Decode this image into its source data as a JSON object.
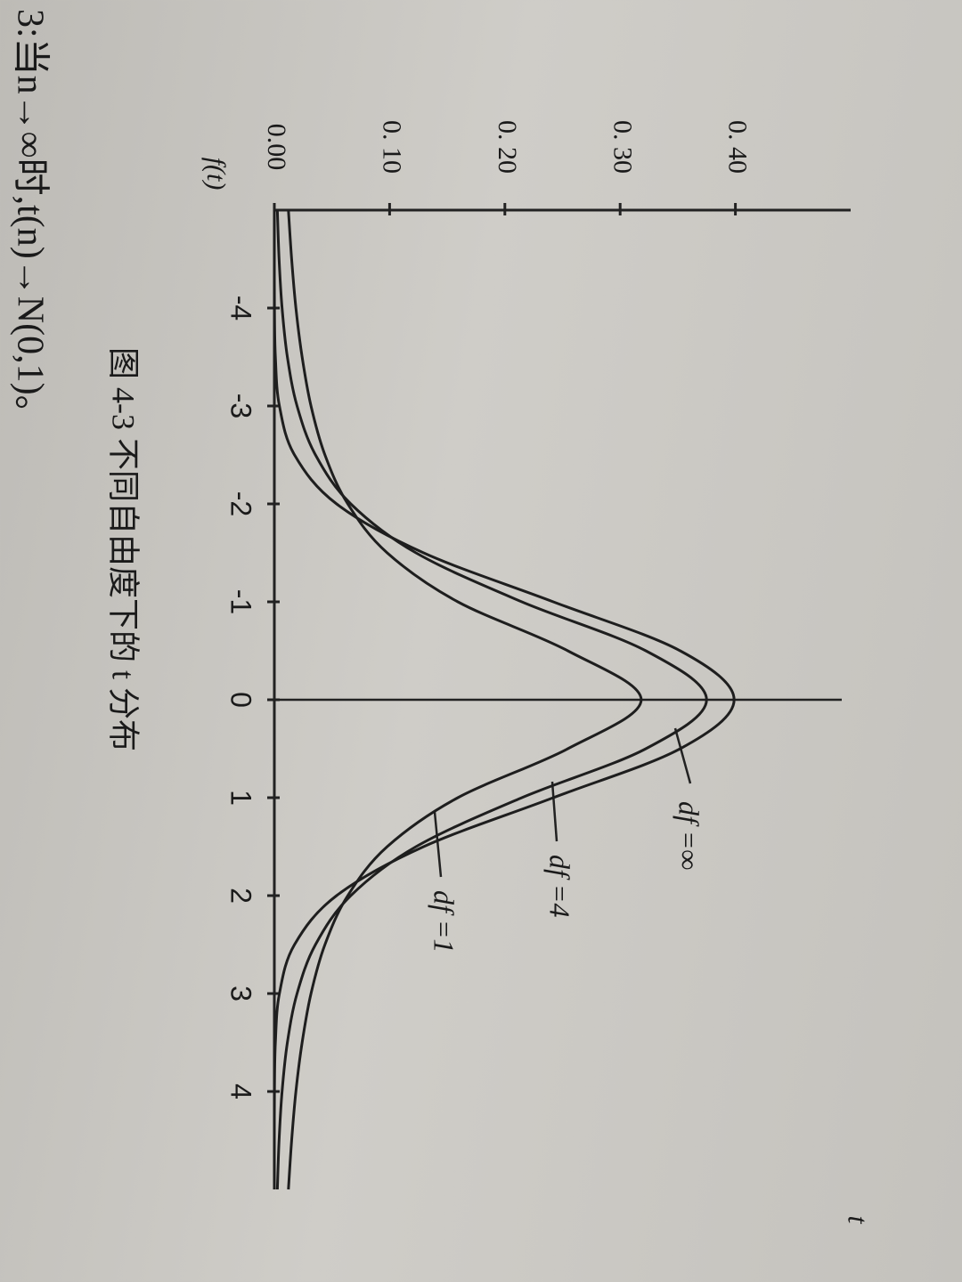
{
  "header": "3:当n→∞时,t(n)→N(0,1)。",
  "chart_data": {
    "type": "line",
    "caption": "图 4-3  不同自由度下的 t 分布",
    "x_label": "t",
    "y_label": "f(t)",
    "x": [
      -5,
      -4.5,
      -4,
      -3.5,
      -3,
      -2.5,
      -2,
      -1.5,
      -1,
      -0.5,
      0,
      0.5,
      1,
      1.5,
      2,
      2.5,
      3,
      3.5,
      4,
      4.5,
      5
    ],
    "series": [
      {
        "name": "df =∞",
        "color": "#1e1e1e",
        "values": [
          0.0,
          0.0,
          0.0001,
          0.0009,
          0.0044,
          0.0175,
          0.054,
          0.1295,
          0.242,
          0.3521,
          0.3989,
          0.3521,
          0.242,
          0.1295,
          0.054,
          0.0175,
          0.0044,
          0.0009,
          0.0001,
          0.0,
          0.0
        ]
      },
      {
        "name": "df =4",
        "color": "#1e1e1e",
        "values": [
          0.0026,
          0.0041,
          0.0067,
          0.0113,
          0.0197,
          0.0357,
          0.0663,
          0.1229,
          0.2147,
          0.3223,
          0.375,
          0.3223,
          0.2147,
          0.1229,
          0.0663,
          0.0357,
          0.0197,
          0.0113,
          0.0067,
          0.0041,
          0.0026
        ]
      },
      {
        "name": "df =1",
        "color": "#1e1e1e",
        "values": [
          0.0122,
          0.015,
          0.0187,
          0.0241,
          0.0318,
          0.0439,
          0.0637,
          0.0979,
          0.1592,
          0.2546,
          0.3183,
          0.2546,
          0.1592,
          0.0979,
          0.0637,
          0.0439,
          0.0318,
          0.0241,
          0.0187,
          0.015,
          0.0122
        ]
      }
    ],
    "xlim": [
      -5,
      5
    ],
    "xticks": [
      -4,
      -3,
      -2,
      -1,
      0,
      1,
      2,
      3,
      4
    ],
    "ylim": [
      0,
      0.5
    ],
    "yticks": [
      {
        "value": 0,
        "label": "0.00"
      },
      {
        "value": 0.1,
        "label": "0. 10"
      },
      {
        "value": 0.2,
        "label": "0. 20"
      },
      {
        "value": 0.3,
        "label": "0. 30"
      },
      {
        "value": 0.4,
        "label": "0. 40"
      }
    ],
    "grid": false
  }
}
